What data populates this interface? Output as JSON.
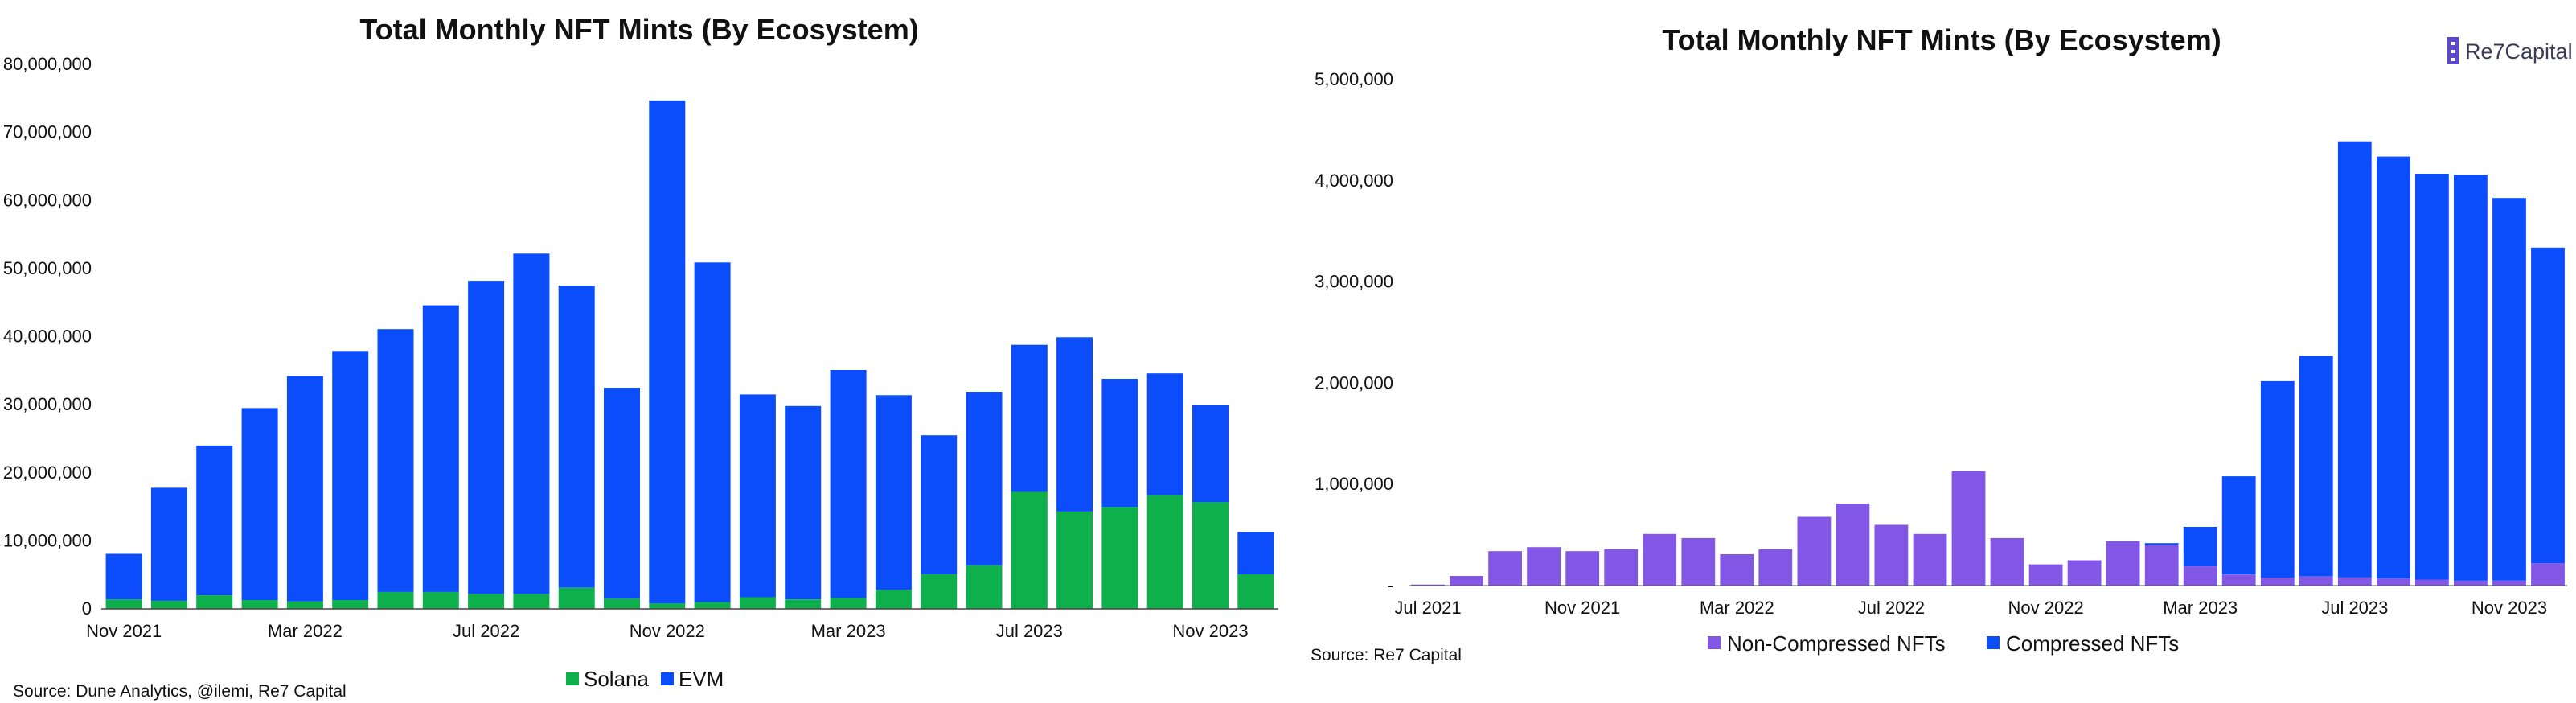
{
  "logo": {
    "text": "Re7Capital"
  },
  "chart_data": [
    {
      "type": "bar",
      "stacked": true,
      "title": "Total Monthly NFT Mints (By Ecosystem)",
      "xlabel": "",
      "ylabel": "",
      "ylim": [
        0,
        80000000
      ],
      "y_ticks": [
        "0",
        "10,000,000",
        "20,000,000",
        "30,000,000",
        "40,000,000",
        "50,000,000",
        "60,000,000",
        "70,000,000",
        "80,000,000"
      ],
      "x_tick_labels": [
        "Nov 2021",
        "Mar 2022",
        "Jul 2022",
        "Nov 2022",
        "Mar 2023",
        "Jul 2023",
        "Nov 2023"
      ],
      "categories": [
        "Nov 2021",
        "Dec 2021",
        "Jan 2022",
        "Feb 2022",
        "Mar 2022",
        "Apr 2022",
        "May 2022",
        "Jun 2022",
        "Jul 2022",
        "Aug 2022",
        "Sep 2022",
        "Oct 2022",
        "Nov 2022",
        "Dec 2022",
        "Jan 2023",
        "Feb 2023",
        "Mar 2023",
        "Apr 2023",
        "May 2023",
        "Jun 2023",
        "Jul 2023",
        "Aug 2023",
        "Sep 2023",
        "Oct 2023",
        "Nov 2023",
        "Dec 2023"
      ],
      "series": [
        {
          "name": "Solana",
          "color": "#0db04b",
          "values": [
            1400000,
            1200000,
            2000000,
            1300000,
            1100000,
            1300000,
            2500000,
            2500000,
            2200000,
            2200000,
            3100000,
            1500000,
            800000,
            1000000,
            1700000,
            1400000,
            1600000,
            2800000,
            5100000,
            6400000,
            17200000,
            14300000,
            15000000,
            16700000,
            15700000,
            5100000
          ]
        },
        {
          "name": "EVM",
          "color": "#0b4dfa",
          "values": [
            6700000,
            16600000,
            22000000,
            28200000,
            33100000,
            36600000,
            38600000,
            42100000,
            46000000,
            50000000,
            44400000,
            31000000,
            73900000,
            49900000,
            29800000,
            28400000,
            33500000,
            28600000,
            20400000,
            25500000,
            21600000,
            25600000,
            18800000,
            17900000,
            14200000,
            6200000
          ]
        }
      ],
      "legend_position": "bottom-center",
      "source": "Source: Dune Analytics, @ilemi, Re7 Capital"
    },
    {
      "type": "bar",
      "stacked": true,
      "title": "Total Monthly NFT Mints (By Ecosystem)",
      "xlabel": "",
      "ylabel": "",
      "ylim": [
        0,
        5000000
      ],
      "y_ticks": [
        "-",
        "1,000,000",
        "2,000,000",
        "3,000,000",
        "4,000,000",
        "5,000,000"
      ],
      "x_tick_labels": [
        "Jul 2021",
        "Nov 2021",
        "Mar 2022",
        "Jul 2022",
        "Nov 2022",
        "Mar 2023",
        "Jul 2023",
        "Nov 2023"
      ],
      "categories": [
        "Jul 2021",
        "Aug 2021",
        "Sep 2021",
        "Oct 2021",
        "Nov 2021",
        "Dec 2021",
        "Jan 2022",
        "Feb 2022",
        "Mar 2022",
        "Apr 2022",
        "May 2022",
        "Jun 2022",
        "Jul 2022",
        "Aug 2022",
        "Sep 2022",
        "Oct 2022",
        "Nov 2022",
        "Dec 2022",
        "Jan 2023",
        "Feb 2023",
        "Mar 2023",
        "Apr 2023",
        "May 2023",
        "Jun 2023",
        "Jul 2023",
        "Aug 2023",
        "Sep 2023",
        "Oct 2023",
        "Nov 2023",
        "Dec 2023"
      ],
      "series": [
        {
          "name": "Non-Compressed NFTs",
          "color": "#8257e6",
          "values": [
            10000,
            95000,
            340000,
            380000,
            340000,
            360000,
            510000,
            470000,
            310000,
            360000,
            680000,
            810000,
            600000,
            510000,
            1130000,
            470000,
            210000,
            250000,
            440000,
            400000,
            190000,
            110000,
            80000,
            90000,
            80000,
            70000,
            60000,
            50000,
            50000,
            220000
          ]
        },
        {
          "name": "Compressed NFTs",
          "color": "#0b4dfa",
          "values": [
            0,
            0,
            0,
            0,
            0,
            0,
            0,
            0,
            0,
            0,
            0,
            0,
            0,
            0,
            0,
            0,
            0,
            0,
            0,
            20000,
            390000,
            970000,
            1940000,
            2180000,
            4310000,
            4170000,
            4010000,
            4010000,
            3780000,
            3120000
          ]
        }
      ],
      "legend_position": "bottom-center",
      "source": "Source: Re7 Capital"
    }
  ]
}
